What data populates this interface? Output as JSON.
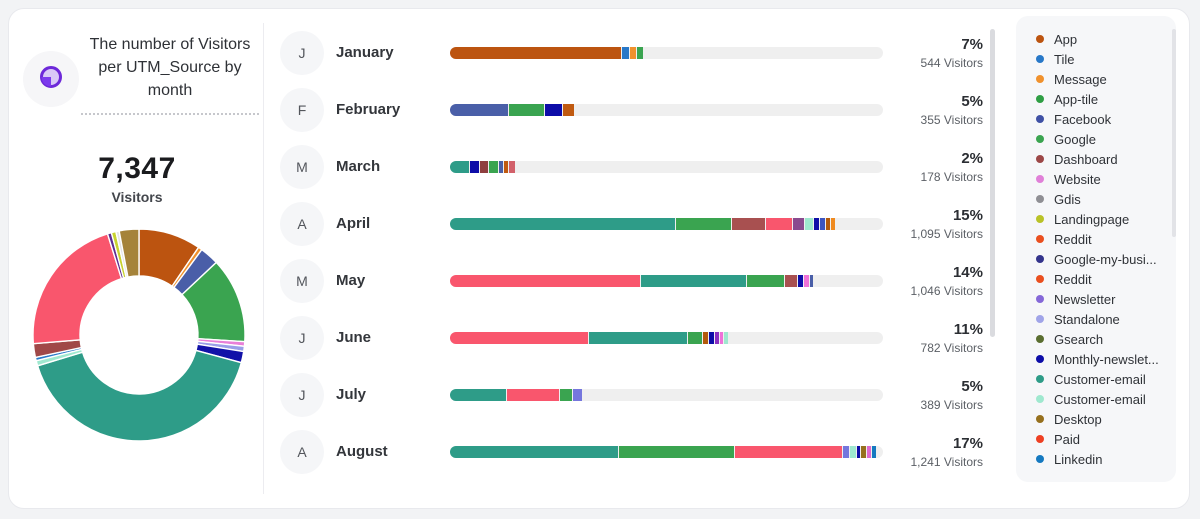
{
  "left_panel": {
    "title": "The number of Visitors per UTM_Source by month",
    "total": "7,347",
    "total_label": "Visitors",
    "icon": "pie-chart-icon",
    "accent_color": "#7c3aed"
  },
  "chart_data": [
    {
      "type": "pie",
      "title": "Visitors share by UTM source",
      "total_visitors": 7347,
      "donut": true,
      "slices": [
        {
          "label": "App",
          "color": "#bc5410",
          "pct": 9.5
        },
        {
          "label": "Message",
          "color": "#f0912d",
          "pct": 0.6
        },
        {
          "label": "Facebook",
          "color": "#4a5ea8",
          "pct": 2.9
        },
        {
          "label": "Google",
          "color": "#3aa450",
          "pct": 13.0
        },
        {
          "label": "Website",
          "color": "#e87fd8",
          "pct": 0.7
        },
        {
          "label": "Standalone",
          "color": "#9a9ee8",
          "pct": 0.8
        },
        {
          "label": "Google-my-busi...",
          "color": "#1212a8",
          "pct": 1.7
        },
        {
          "label": "Customer-email",
          "color": "#2e9c88",
          "pct": 41.1
        },
        {
          "label": "Customer-email",
          "color": "#9fe8cf",
          "pct": 0.8
        },
        {
          "label": "Tile",
          "color": "#2878c8",
          "pct": 0.5
        },
        {
          "label": "Dashboard",
          "color": "#a04848",
          "pct": 2.1
        },
        {
          "label": "Paid",
          "color": "#f9566d",
          "pct": 21.5
        },
        {
          "label": "Newsletter",
          "color": "#5c2d91",
          "pct": 0.6
        },
        {
          "label": "Landingpage",
          "color": "#c8d22f",
          "pct": 0.7
        },
        {
          "label": "Gdis",
          "color": "#e3e3e6",
          "pct": 0.5
        },
        {
          "label": "Desktop",
          "color": "#a5833a",
          "pct": 3.0
        }
      ]
    },
    {
      "type": "bar",
      "title": "Visitors per month by UTM source",
      "orientation": "horizontal",
      "track_color": "#efefef",
      "months": [
        {
          "name": "January",
          "initial": "J",
          "percent": "7%",
          "percent_num": 7,
          "visitors": 544,
          "visitors_label": "544 Visitors",
          "segments": [
            {
              "color": "#bc5410",
              "w": 39.5
            },
            {
              "color": "#2878c8",
              "w": 1.5
            },
            {
              "color": "#f0912d",
              "w": 1.5
            },
            {
              "color": "#3aa450",
              "w": 1.5
            }
          ]
        },
        {
          "name": "February",
          "initial": "F",
          "percent": "5%",
          "percent_num": 5,
          "visitors": 355,
          "visitors_label": "355 Visitors",
          "segments": [
            {
              "color": "#4a5fa8",
              "w": 13.5
            },
            {
              "color": "#3aa450",
              "w": 8.0
            },
            {
              "color": "#0d0da8",
              "w": 4.0
            },
            {
              "color": "#c05a11",
              "w": 2.5
            }
          ]
        },
        {
          "name": "March",
          "initial": "M",
          "percent": "2%",
          "percent_num": 2,
          "visitors": 178,
          "visitors_label": "178 Visitors",
          "segments": [
            {
              "color": "#2e9c88",
              "w": 4.3
            },
            {
              "color": "#0d0da8",
              "w": 2.2
            },
            {
              "color": "#8f3f3f",
              "w": 1.9
            },
            {
              "color": "#3aa450",
              "w": 1.9
            },
            {
              "color": "#4a5fa8",
              "w": 1.0
            },
            {
              "color": "#c05a11",
              "w": 1.0
            },
            {
              "color": "#d2606a",
              "w": 1.4
            }
          ]
        },
        {
          "name": "April",
          "initial": "A",
          "percent": "15%",
          "percent_num": 15,
          "visitors": 1095,
          "visitors_label": "1,095 Visitors",
          "segments": [
            {
              "color": "#2e9c88",
              "w": 52.0
            },
            {
              "color": "#3aa450",
              "w": 12.7
            },
            {
              "color": "#a85050",
              "w": 7.7
            },
            {
              "color": "#f9566d",
              "w": 6.0
            },
            {
              "color": "#8a4a8f",
              "w": 2.4
            },
            {
              "color": "#9fe8cf",
              "w": 1.9
            },
            {
              "color": "#0d0da8",
              "w": 1.2
            },
            {
              "color": "#3c55c0",
              "w": 1.0
            },
            {
              "color": "#b35a0c",
              "w": 1.0
            },
            {
              "color": "#ef8a1f",
              "w": 1.0
            }
          ]
        },
        {
          "name": "May",
          "initial": "M",
          "percent": "14%",
          "percent_num": 14,
          "visitors": 1046,
          "visitors_label": "1,046 Visitors",
          "segments": [
            {
              "color": "#f9566d",
              "w": 43.8
            },
            {
              "color": "#2e9c88",
              "w": 24.4
            },
            {
              "color": "#3aa450",
              "w": 8.4
            },
            {
              "color": "#a85050",
              "w": 2.9
            },
            {
              "color": "#0d0da8",
              "w": 1.0
            },
            {
              "color": "#ef72d8",
              "w": 1.2
            },
            {
              "color": "#4a5fa8",
              "w": 0.8
            }
          ]
        },
        {
          "name": "June",
          "initial": "J",
          "percent": "11%",
          "percent_num": 11,
          "visitors": 782,
          "visitors_label": "782 Visitors",
          "segments": [
            {
              "color": "#f9566d",
              "w": 31.8
            },
            {
              "color": "#2e9c88",
              "w": 22.7
            },
            {
              "color": "#3aa450",
              "w": 3.3
            },
            {
              "color": "#b35a0c",
              "w": 1.2
            },
            {
              "color": "#0d0da8",
              "w": 1.0
            },
            {
              "color": "#8a30c2",
              "w": 1.0
            },
            {
              "color": "#ef72d8",
              "w": 0.7
            },
            {
              "color": "#9fe8cf",
              "w": 1.0
            }
          ]
        },
        {
          "name": "July",
          "initial": "J",
          "percent": "5%",
          "percent_num": 5,
          "visitors": 389,
          "visitors_label": "389 Visitors",
          "segments": [
            {
              "color": "#2e9c88",
              "w": 13.0
            },
            {
              "color": "#f9566d",
              "w": 12.0
            },
            {
              "color": "#3aa450",
              "w": 2.7
            },
            {
              "color": "#7576dd",
              "w": 2.2
            }
          ]
        },
        {
          "name": "August",
          "initial": "A",
          "percent": "17%",
          "percent_num": 17,
          "visitors": 1241,
          "visitors_label": "1,241 Visitors",
          "segments": [
            {
              "color": "#2e9c88",
              "w": 38.8
            },
            {
              "color": "#3aa450",
              "w": 26.6
            },
            {
              "color": "#f9566d",
              "w": 24.6
            },
            {
              "color": "#7576dd",
              "w": 1.4
            },
            {
              "color": "#9fe8cf",
              "w": 1.4
            },
            {
              "color": "#0d0da8",
              "w": 0.8
            },
            {
              "color": "#96701e",
              "w": 1.0
            },
            {
              "color": "#e06ad0",
              "w": 1.0
            },
            {
              "color": "#1579c0",
              "w": 1.0
            }
          ]
        }
      ]
    }
  ],
  "legend": {
    "items": [
      {
        "label": "App",
        "color": "#bc5410"
      },
      {
        "label": "Tile",
        "color": "#2878c8"
      },
      {
        "label": "Message",
        "color": "#f0912d"
      },
      {
        "label": "App-tile",
        "color": "#2f9e44"
      },
      {
        "label": "Facebook",
        "color": "#3f51a5"
      },
      {
        "label": "Google",
        "color": "#3aa450"
      },
      {
        "label": "Dashboard",
        "color": "#9c4747"
      },
      {
        "label": "Website",
        "color": "#e080d8"
      },
      {
        "label": "Gdis",
        "color": "#8f8f94"
      },
      {
        "label": "Landingpage",
        "color": "#b9c227"
      },
      {
        "label": "Reddit",
        "color": "#ea4f1f"
      },
      {
        "label": "Google-my-busi...",
        "color": "#34348c"
      },
      {
        "label": "Reddit",
        "color": "#ea4f1f"
      },
      {
        "label": "Newsletter",
        "color": "#8568d8"
      },
      {
        "label": "Standalone",
        "color": "#a0a4e8"
      },
      {
        "label": "Gsearch",
        "color": "#5a6e30"
      },
      {
        "label": "Monthly-newslet...",
        "color": "#0d0da8"
      },
      {
        "label": "Customer-email",
        "color": "#2e9c88"
      },
      {
        "label": "Customer-email",
        "color": "#9fe8cf"
      },
      {
        "label": "Desktop",
        "color": "#96701e"
      },
      {
        "label": "Paid",
        "color": "#ee4023"
      },
      {
        "label": "Linkedin",
        "color": "#1579c0"
      }
    ]
  }
}
